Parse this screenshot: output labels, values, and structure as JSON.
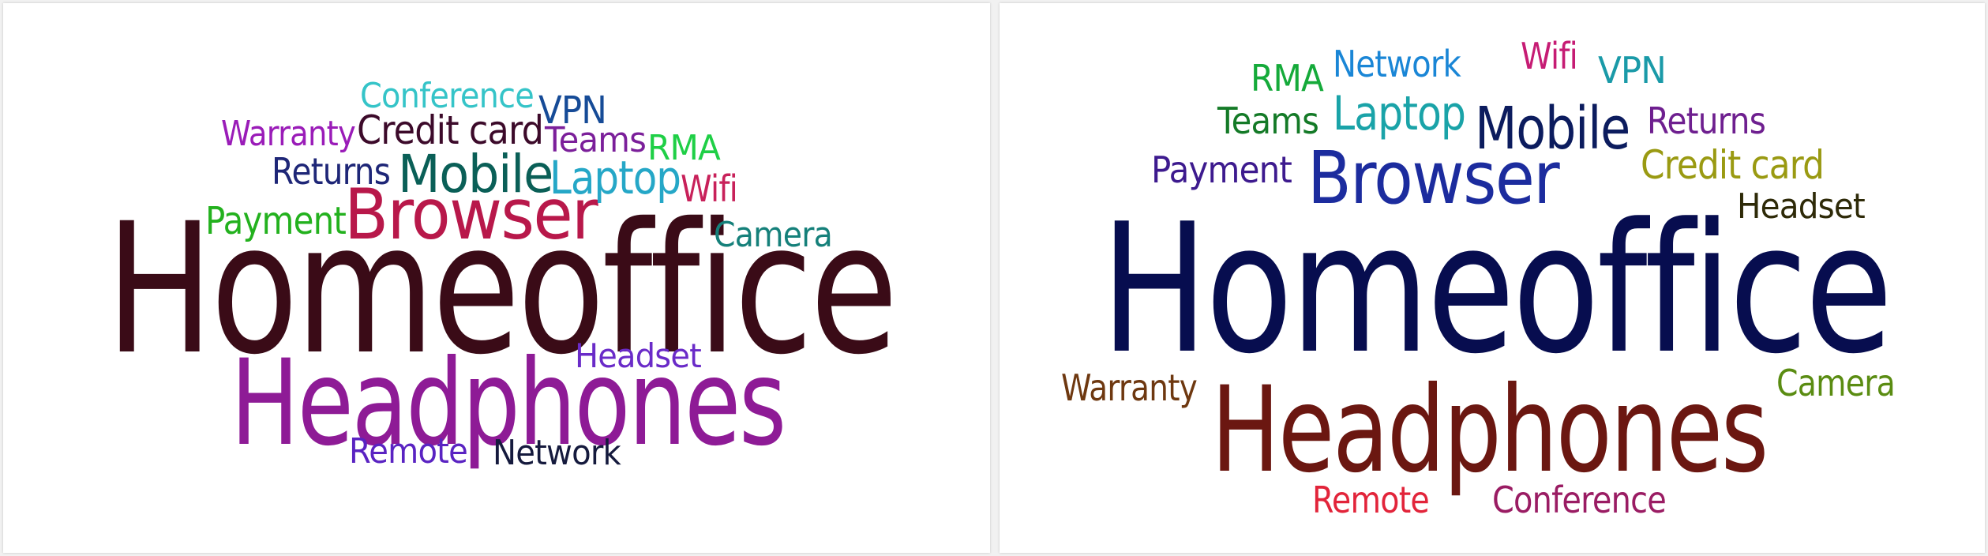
{
  "word_clouds": [
    {
      "words": [
        {
          "text": "Homeoffice",
          "color": "#3a0b17"
        },
        {
          "text": "Headphones",
          "color": "#8e1b96"
        },
        {
          "text": "Browser",
          "color": "#b8184a"
        },
        {
          "text": "Mobile",
          "color": "#0a5f57"
        },
        {
          "text": "Laptop",
          "color": "#25a7c7"
        },
        {
          "text": "Credit card",
          "color": "#3c0a2a"
        },
        {
          "text": "Conference",
          "color": "#35c4c8"
        },
        {
          "text": "Warranty",
          "color": "#9a1cb8"
        },
        {
          "text": "VPN",
          "color": "#164b97"
        },
        {
          "text": "Teams",
          "color": "#7b1f9a"
        },
        {
          "text": "RMA",
          "color": "#1fcf46"
        },
        {
          "text": "Returns",
          "color": "#1e2677"
        },
        {
          "text": "Wifi",
          "color": "#c8215a"
        },
        {
          "text": "Payment",
          "color": "#23b11e"
        },
        {
          "text": "Camera",
          "color": "#15807a"
        },
        {
          "text": "Headset",
          "color": "#6a2bc8"
        },
        {
          "text": "Remote",
          "color": "#5a23c2"
        },
        {
          "text": "Network",
          "color": "#151a3d"
        }
      ]
    },
    {
      "words": [
        {
          "text": "Homeoffice",
          "color": "#070d4f"
        },
        {
          "text": "Headphones",
          "color": "#6b1711"
        },
        {
          "text": "Browser",
          "color": "#1c2c9e"
        },
        {
          "text": "Mobile",
          "color": "#0c1c5e"
        },
        {
          "text": "Laptop",
          "color": "#1aa3a8"
        },
        {
          "text": "Network",
          "color": "#1a86d6"
        },
        {
          "text": "Wifi",
          "color": "#c61c74"
        },
        {
          "text": "VPN",
          "color": "#1a9aa8"
        },
        {
          "text": "RMA",
          "color": "#15aa3a"
        },
        {
          "text": "Teams",
          "color": "#147a27"
        },
        {
          "text": "Returns",
          "color": "#6e1f8f"
        },
        {
          "text": "Payment",
          "color": "#3d1a8e"
        },
        {
          "text": "Credit card",
          "color": "#9a9a12"
        },
        {
          "text": "Headset",
          "color": "#2e2a08"
        },
        {
          "text": "Warranty",
          "color": "#6e3810"
        },
        {
          "text": "Camera",
          "color": "#5a8c12"
        },
        {
          "text": "Remote",
          "color": "#e2243a"
        },
        {
          "text": "Conference",
          "color": "#9a1c63"
        }
      ]
    }
  ]
}
